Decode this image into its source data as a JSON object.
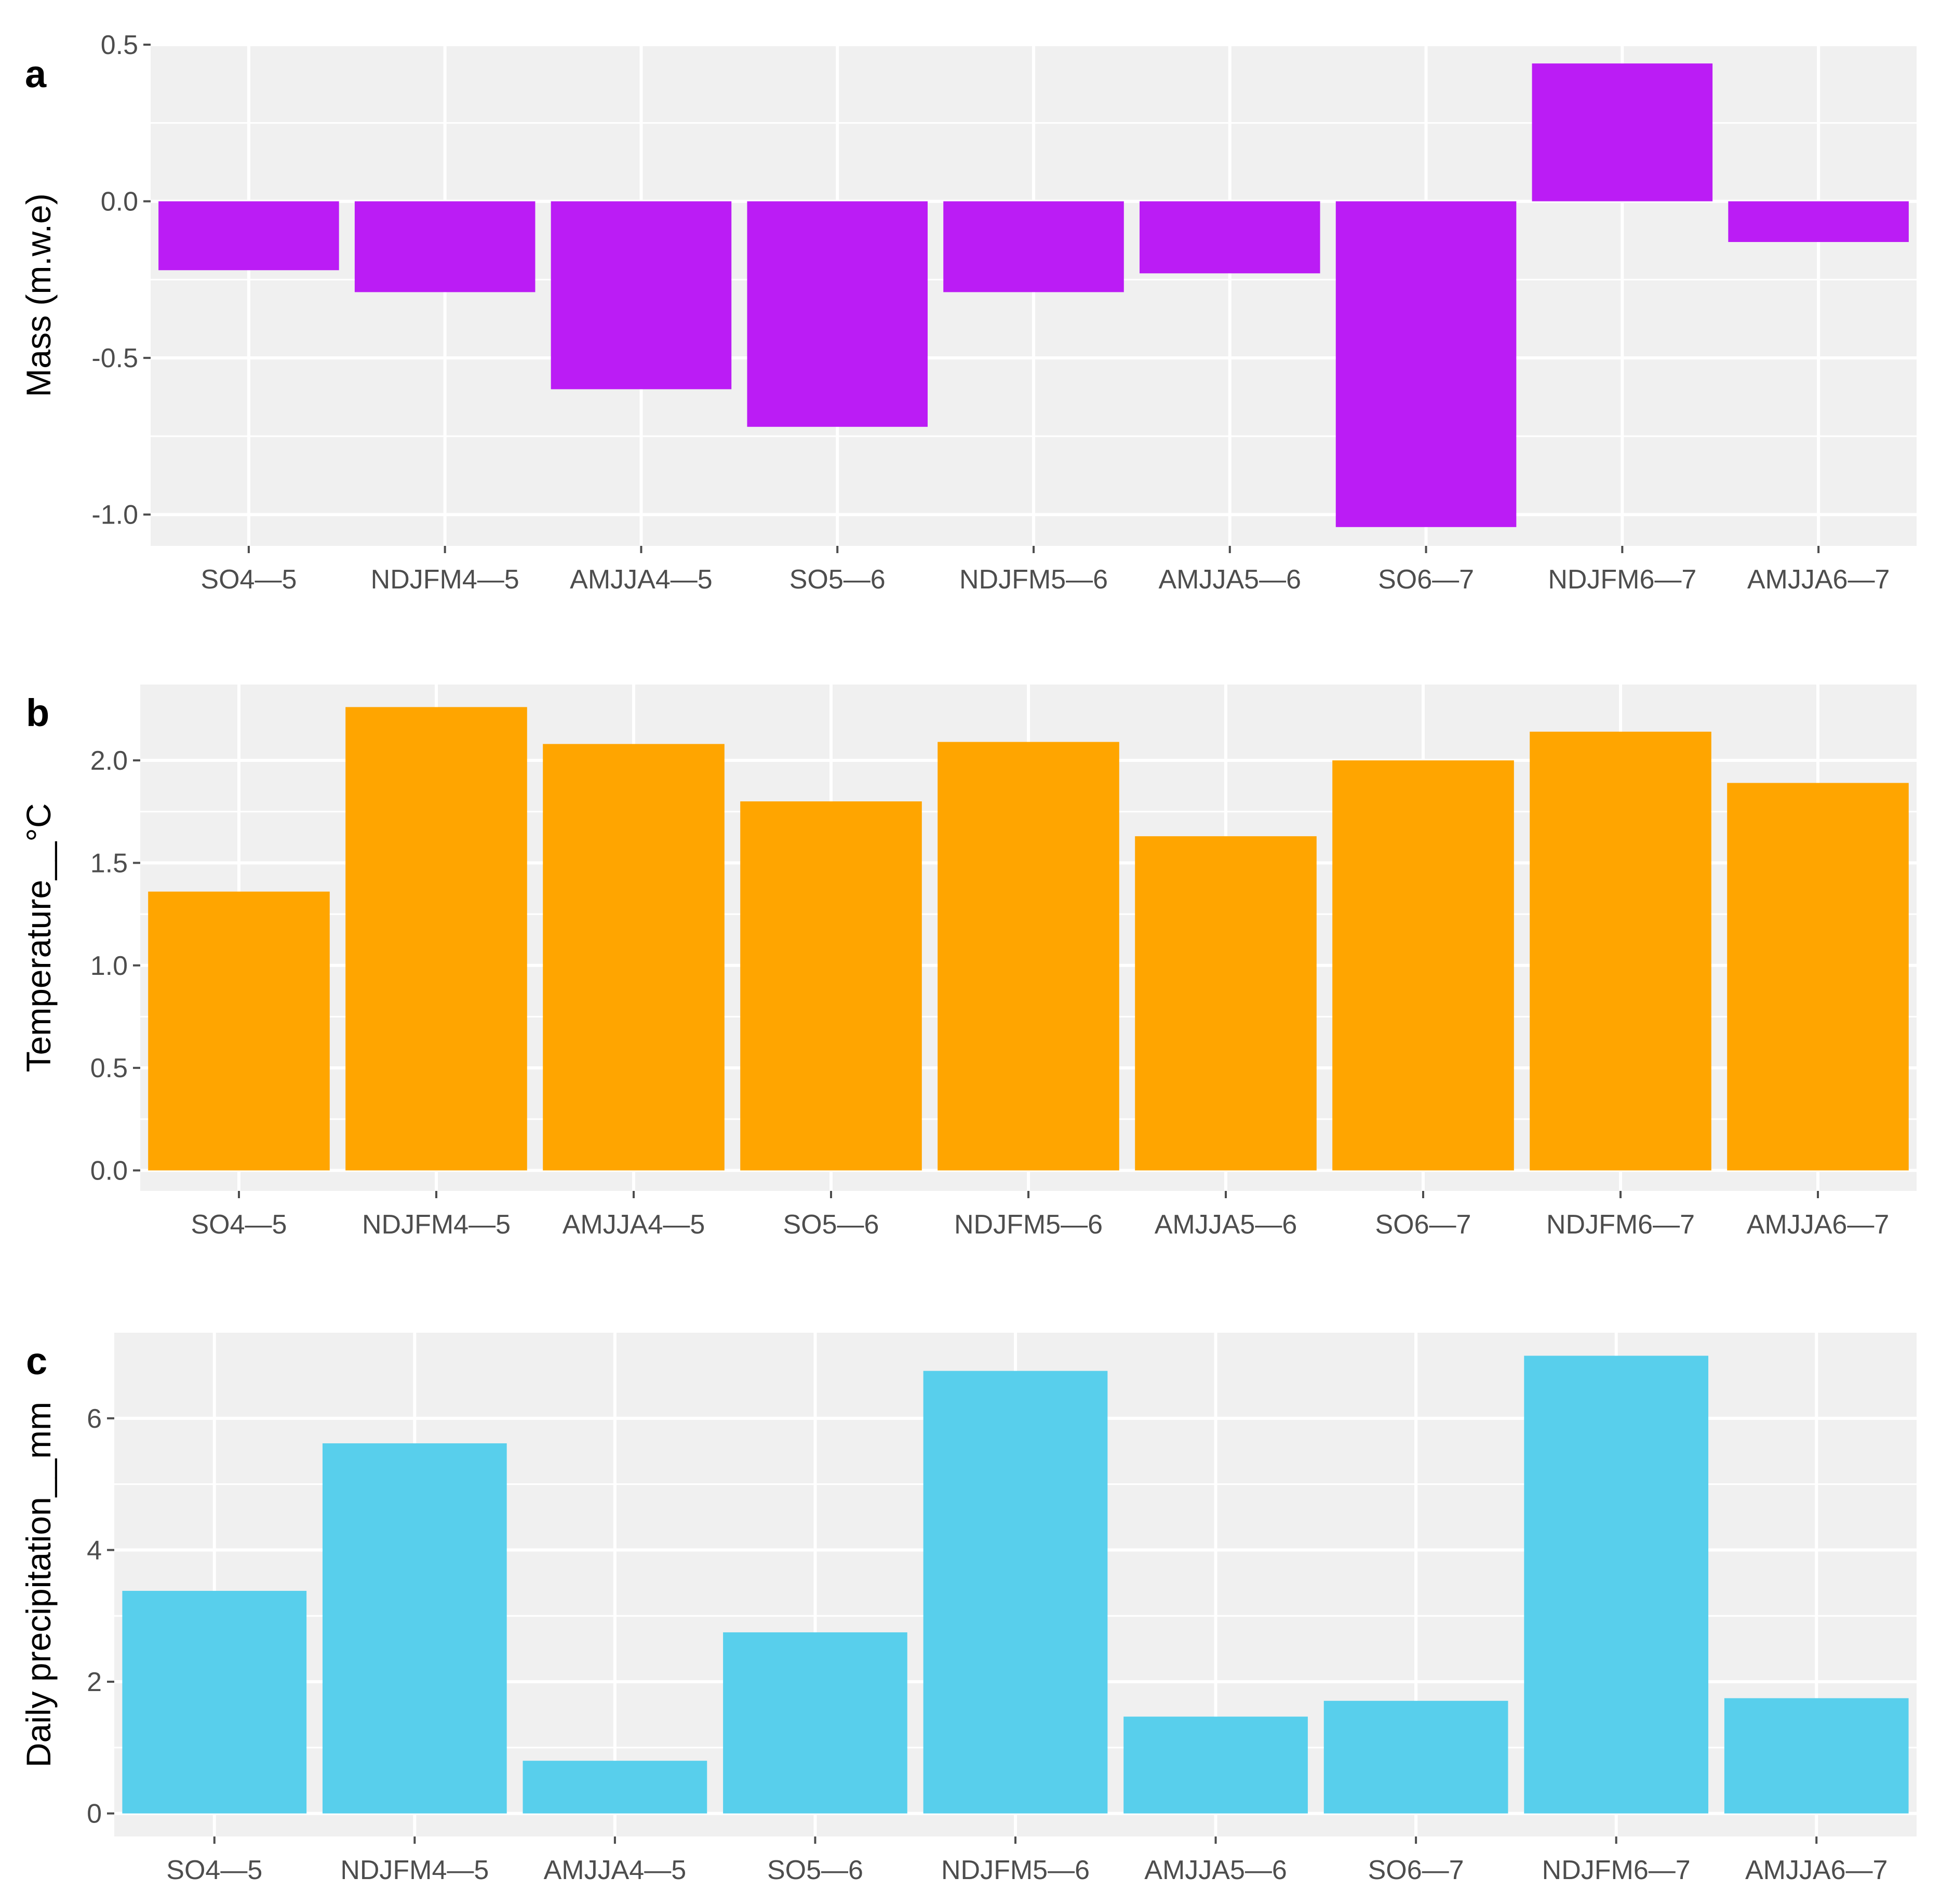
{
  "colors": {
    "panel_bg": "#f0f0f0",
    "grid": "#ffffff",
    "tick": "#4d4d4d",
    "mass": "#bb1cf5",
    "temperature": "#ffa500",
    "precipitation": "#58cfec"
  },
  "chart_data": [
    {
      "type": "bar",
      "panel_letter": "a",
      "title": "",
      "xlabel": "",
      "ylabel": "Mass (m.w.e)",
      "categories": [
        "SO4—5",
        "NDJFM4—5",
        "AMJJA4—5",
        "SO5—6",
        "NDJFM5—6",
        "AMJJA5—6",
        "SO6—7",
        "NDJFM6—7",
        "AMJJA6—7"
      ],
      "values": [
        -0.22,
        -0.29,
        -0.6,
        -0.72,
        -0.29,
        -0.23,
        -1.04,
        0.44,
        -0.13
      ],
      "ylim": [
        -1.1,
        0.5
      ],
      "yticks": [
        -1.0,
        -0.5,
        0.0,
        0.5
      ],
      "ytick_labels": [
        "-1.0",
        "-0.5",
        "0.0",
        "0.5"
      ],
      "grid": true,
      "legend": "none"
    },
    {
      "type": "bar",
      "panel_letter": "b",
      "title": "",
      "xlabel": "",
      "ylabel": "Temperature__°C",
      "categories": [
        "SO4—5",
        "NDJFM4—5",
        "AMJJA4—5",
        "SO5—6",
        "NDJFM5—6",
        "AMJJA5—6",
        "SO6—7",
        "NDJFM6—7",
        "AMJJA6—7"
      ],
      "values": [
        1.36,
        2.26,
        2.08,
        1.8,
        2.09,
        1.63,
        2.0,
        2.14,
        1.89
      ],
      "ylim": [
        -0.1,
        2.37
      ],
      "yticks": [
        0.0,
        0.5,
        1.0,
        1.5,
        2.0
      ],
      "ytick_labels": [
        "0.0",
        "0.5",
        "1.0",
        "1.5",
        "2.0"
      ],
      "grid": true,
      "legend": "none"
    },
    {
      "type": "bar",
      "panel_letter": "c",
      "title": "",
      "xlabel": "",
      "ylabel": "Daily precipitation__mm",
      "categories": [
        "SO4—5",
        "NDJFM4—5",
        "AMJJA4—5",
        "SO5—6",
        "NDJFM5—6",
        "AMJJA5—6",
        "SO6—7",
        "NDJFM6—7",
        "AMJJA6—7"
      ],
      "values": [
        3.38,
        5.62,
        0.8,
        2.75,
        6.72,
        1.47,
        1.71,
        6.95,
        1.75
      ],
      "ylim": [
        -0.35,
        7.3
      ],
      "yticks": [
        0,
        2,
        4,
        6
      ],
      "ytick_labels": [
        "0",
        "2",
        "4",
        "6"
      ],
      "grid": true,
      "legend": "none"
    }
  ]
}
